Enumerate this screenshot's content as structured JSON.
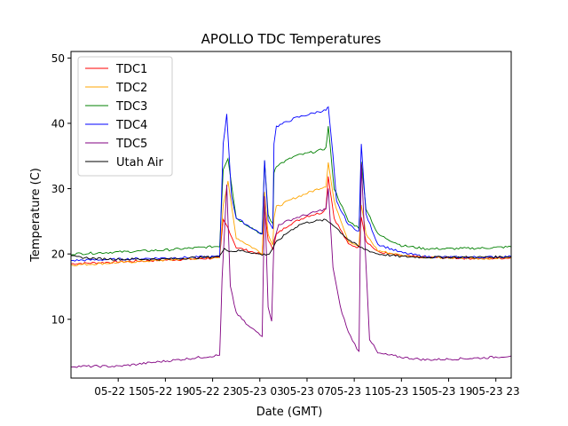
{
  "chart_data": {
    "type": "line",
    "title": "APOLLO TDC Temperatures",
    "xlabel": "Date (GMT)",
    "ylabel": "Temperature (C)",
    "x_unit": "hours since 05-22 11:00 GMT",
    "xlim": [
      0,
      37.3
    ],
    "ylim": [
      1,
      51
    ],
    "yticks": [
      10,
      20,
      30,
      40,
      50
    ],
    "xticks": [
      {
        "x": 4,
        "label": "05-22 15"
      },
      {
        "x": 8,
        "label": "05-22 19"
      },
      {
        "x": 12,
        "label": "05-22 23"
      },
      {
        "x": 16,
        "label": "05-23 03"
      },
      {
        "x": 20,
        "label": "05-23 07"
      },
      {
        "x": 24,
        "label": "05-23 11"
      },
      {
        "x": 28,
        "label": "05-23 15"
      },
      {
        "x": 32,
        "label": "05-23 19"
      },
      {
        "x": 36,
        "label": "05-23 23"
      }
    ],
    "legend": {
      "position": "top-left"
    },
    "series": [
      {
        "name": "TDC1",
        "color": "#ff0000",
        "points": [
          [
            0,
            18.5
          ],
          [
            12.6,
            19.4
          ],
          [
            12.9,
            25.2
          ],
          [
            13.3,
            24.0
          ],
          [
            14.0,
            21.0
          ],
          [
            16.2,
            19.9
          ],
          [
            16.4,
            27.2
          ],
          [
            16.7,
            22.0
          ],
          [
            17.1,
            20.8
          ],
          [
            17.2,
            21.3
          ],
          [
            17.4,
            23.0
          ],
          [
            18.5,
            24.5
          ],
          [
            20,
            25.8
          ],
          [
            21.2,
            26.3
          ],
          [
            21.6,
            27.0
          ],
          [
            21.8,
            31.9
          ],
          [
            22.3,
            25.5
          ],
          [
            23.5,
            21.5
          ],
          [
            24.4,
            21.0
          ],
          [
            24.6,
            25.8
          ],
          [
            25.0,
            22.0
          ],
          [
            26,
            20.3
          ],
          [
            28,
            19.7
          ],
          [
            30,
            19.5
          ],
          [
            32,
            19.4
          ],
          [
            35,
            19.3
          ],
          [
            37.3,
            19.4
          ]
        ]
      },
      {
        "name": "TDC2",
        "color": "#ffa500",
        "points": [
          [
            0,
            18.3
          ],
          [
            12.6,
            19.5
          ],
          [
            12.9,
            27.5
          ],
          [
            13.3,
            31.0
          ],
          [
            14.0,
            22.5
          ],
          [
            16.2,
            20.1
          ],
          [
            16.4,
            29.5
          ],
          [
            16.7,
            23.0
          ],
          [
            17.1,
            21.5
          ],
          [
            17.2,
            25.5
          ],
          [
            17.4,
            27.2
          ],
          [
            19,
            28.6
          ],
          [
            21,
            30.0
          ],
          [
            21.6,
            30.4
          ],
          [
            21.8,
            34.0
          ],
          [
            22.3,
            28.0
          ],
          [
            23.5,
            22.0
          ],
          [
            24.4,
            21.2
          ],
          [
            24.6,
            27.5
          ],
          [
            25.0,
            23.0
          ],
          [
            26,
            20.5
          ],
          [
            28,
            19.8
          ],
          [
            30,
            19.5
          ],
          [
            32,
            19.4
          ],
          [
            35,
            19.3
          ],
          [
            37.3,
            19.4
          ]
        ]
      },
      {
        "name": "TDC3",
        "color": "#008000",
        "points": [
          [
            0,
            20.0
          ],
          [
            8,
            20.6
          ],
          [
            12.6,
            21.2
          ],
          [
            12.9,
            33.0
          ],
          [
            13.3,
            34.7
          ],
          [
            14.0,
            25.5
          ],
          [
            16.2,
            23.0
          ],
          [
            16.4,
            34.3
          ],
          [
            16.7,
            26.0
          ],
          [
            17.1,
            24.5
          ],
          [
            17.2,
            32.5
          ],
          [
            17.4,
            33.5
          ],
          [
            19,
            35.0
          ],
          [
            21,
            35.8
          ],
          [
            21.6,
            36.2
          ],
          [
            21.8,
            39.5
          ],
          [
            22.3,
            30.0
          ],
          [
            23.5,
            25.0
          ],
          [
            24.4,
            24.0
          ],
          [
            24.6,
            34.0
          ],
          [
            25.0,
            27.0
          ],
          [
            26,
            23.0
          ],
          [
            28,
            21.3
          ],
          [
            30,
            20.8
          ],
          [
            32,
            20.8
          ],
          [
            35,
            20.9
          ],
          [
            37.3,
            21.1
          ]
        ]
      },
      {
        "name": "TDC4",
        "color": "#0000ff",
        "points": [
          [
            0,
            19.0
          ],
          [
            12.6,
            19.6
          ],
          [
            12.9,
            37.0
          ],
          [
            13.2,
            41.3
          ],
          [
            13.6,
            29.0
          ],
          [
            14.0,
            25.5
          ],
          [
            16.2,
            23.0
          ],
          [
            16.4,
            34.5
          ],
          [
            16.7,
            25.0
          ],
          [
            17.1,
            24.0
          ],
          [
            17.2,
            37.0
          ],
          [
            17.4,
            39.5
          ],
          [
            19,
            40.8
          ],
          [
            21,
            41.8
          ],
          [
            21.6,
            42.0
          ],
          [
            21.8,
            42.5
          ],
          [
            22.2,
            35.0
          ],
          [
            22.5,
            28.0
          ],
          [
            23.5,
            24.5
          ],
          [
            24.4,
            23.5
          ],
          [
            24.6,
            36.8
          ],
          [
            25.0,
            26.0
          ],
          [
            26,
            21.5
          ],
          [
            28,
            20.2
          ],
          [
            30,
            19.6
          ],
          [
            32,
            19.5
          ],
          [
            35,
            19.5
          ],
          [
            37.3,
            19.6
          ]
        ]
      },
      {
        "name": "TDC5",
        "color": "#800080",
        "points": [
          [
            0,
            2.8
          ],
          [
            4,
            2.8
          ],
          [
            8,
            3.6
          ],
          [
            12.6,
            4.5
          ],
          [
            12.8,
            16.0
          ],
          [
            13.2,
            30.5
          ],
          [
            13.5,
            15.0
          ],
          [
            14.0,
            11.0
          ],
          [
            15,
            9.0
          ],
          [
            16.2,
            7.5
          ],
          [
            16.4,
            29.0
          ],
          [
            16.7,
            12.0
          ],
          [
            17.0,
            9.8
          ],
          [
            17.2,
            22.0
          ],
          [
            17.6,
            24.5
          ],
          [
            19,
            25.5
          ],
          [
            20.5,
            26.3
          ],
          [
            21.6,
            26.9
          ],
          [
            21.8,
            30.0
          ],
          [
            22.2,
            18.0
          ],
          [
            22.8,
            12.0
          ],
          [
            23.5,
            8.0
          ],
          [
            24.4,
            5.0
          ],
          [
            24.6,
            34.0
          ],
          [
            24.9,
            22.0
          ],
          [
            25.3,
            7.0
          ],
          [
            26,
            4.8
          ],
          [
            28,
            4.2
          ],
          [
            30,
            3.8
          ],
          [
            32,
            3.9
          ],
          [
            35,
            4.1
          ],
          [
            37.3,
            4.4
          ]
        ]
      },
      {
        "name": "Utah Air",
        "color": "#000000",
        "points": [
          [
            0,
            19.6
          ],
          [
            2,
            19.3
          ],
          [
            4,
            19.2
          ],
          [
            8,
            19.2
          ],
          [
            12.6,
            19.6
          ],
          [
            13.0,
            21.0
          ],
          [
            13.4,
            20.4
          ],
          [
            14.5,
            20.5
          ],
          [
            16.2,
            19.9
          ],
          [
            16.8,
            20.0
          ],
          [
            17.4,
            21.8
          ],
          [
            18.5,
            23.5
          ],
          [
            19.5,
            24.6
          ],
          [
            20.5,
            25.0
          ],
          [
            21.6,
            25.2
          ],
          [
            22.2,
            24.5
          ],
          [
            23.5,
            22.2
          ],
          [
            24.5,
            21.0
          ],
          [
            26,
            20.0
          ],
          [
            28,
            19.6
          ],
          [
            30,
            19.5
          ],
          [
            32,
            19.5
          ],
          [
            35,
            19.5
          ],
          [
            37.3,
            19.6
          ]
        ]
      }
    ]
  }
}
